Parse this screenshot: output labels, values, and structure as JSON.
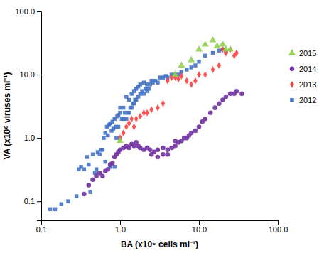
{
  "chart_data": {
    "type": "scatter",
    "x_label": "BA (x10⁵ cells ml⁻¹)",
    "y_label": "VA (x10⁶ viruses ml⁻¹)",
    "log": true,
    "grid": false,
    "legend": "right",
    "xlim": [
      0.1,
      100.0
    ],
    "ylim": [
      0.05,
      100.0
    ],
    "xticks": [
      0.1,
      {
        "value": 1.0,
        "label": "1.0"
      },
      {
        "value": 10.0,
        "label": "10.0"
      },
      {
        "value": 100.0,
        "label": "100.0"
      }
    ],
    "yticks": [
      0.1,
      {
        "value": 1.0,
        "label": "1.0"
      },
      {
        "value": 10.0,
        "label": "10.0"
      },
      {
        "value": 100.0,
        "label": "100.0"
      }
    ],
    "series": [
      {
        "name": "2015",
        "color": "#92D050",
        "marker": "triangle",
        "x": [
          1.0,
          5.0,
          6.0,
          8.0,
          10.0,
          12.0,
          15.0,
          17.0,
          20.0,
          22.0,
          25.0
        ],
        "values": [
          0.9,
          10.0,
          14.0,
          17.0,
          25.0,
          30.0,
          35.0,
          28.0,
          30.0,
          25.0,
          25.0
        ]
      },
      {
        "name": "2014",
        "color": "#7030A0",
        "marker": "circle",
        "x": [
          0.35,
          0.4,
          0.45,
          0.5,
          0.55,
          0.6,
          0.65,
          0.7,
          0.75,
          0.8,
          0.85,
          0.9,
          0.95,
          1.0,
          1.1,
          1.2,
          1.3,
          1.4,
          1.5,
          1.6,
          1.7,
          1.8,
          2.0,
          2.2,
          2.4,
          2.5,
          2.7,
          3.0,
          3.0,
          3.5,
          3.5,
          4.0,
          4.0,
          4.5,
          5.0,
          5.0,
          5.5,
          6.0,
          6.5,
          7.0,
          7.5,
          8.0,
          9.0,
          10.0,
          11.0,
          12.0,
          14.0,
          16.0,
          18.0,
          20.0,
          22.0,
          25.0,
          28.0,
          30.0,
          35.0
        ],
        "values": [
          0.13,
          0.18,
          0.22,
          0.25,
          0.28,
          0.25,
          0.3,
          0.32,
          0.38,
          0.4,
          0.5,
          0.55,
          0.6,
          0.65,
          0.7,
          0.75,
          0.7,
          0.8,
          0.75,
          0.85,
          0.75,
          0.7,
          0.65,
          0.7,
          0.65,
          0.55,
          0.6,
          0.5,
          0.65,
          0.55,
          0.7,
          0.55,
          0.65,
          0.7,
          0.75,
          0.9,
          0.85,
          0.9,
          1.0,
          1.0,
          1.1,
          1.2,
          1.3,
          1.5,
          1.8,
          2.0,
          2.5,
          3.0,
          3.5,
          4.0,
          4.5,
          5.0,
          5.0,
          5.5,
          5.0
        ]
      },
      {
        "name": "2013",
        "color": "#FF4040",
        "marker": "diamond",
        "x": [
          1.0,
          1.1,
          1.2,
          1.3,
          1.4,
          1.5,
          1.6,
          1.8,
          2.0,
          2.2,
          2.5,
          3.0,
          3.5,
          4.0,
          4.5,
          5.0,
          5.5,
          6.0,
          7.0,
          8.0,
          9.0,
          10.0,
          12.0,
          15.0,
          18.0,
          20.0,
          22.0,
          25.0,
          28.0,
          30.0
        ],
        "values": [
          1.0,
          1.2,
          1.5,
          1.7,
          2.0,
          1.5,
          2.0,
          2.2,
          2.5,
          2.5,
          2.8,
          3.0,
          3.5,
          8.0,
          9.0,
          9.0,
          8.5,
          9.5,
          8.0,
          7.0,
          8.0,
          10.0,
          10.0,
          12.0,
          14.0,
          25.0,
          22.0,
          25.0,
          20.0,
          22.0
        ]
      },
      {
        "name": "2012",
        "color": "#4472C4",
        "marker": "square",
        "x": [
          0.13,
          0.15,
          0.18,
          0.22,
          0.28,
          0.3,
          0.32,
          0.35,
          0.38,
          0.4,
          0.42,
          0.45,
          0.48,
          0.5,
          0.52,
          0.55,
          0.58,
          0.6,
          0.62,
          0.65,
          0.65,
          0.68,
          0.7,
          0.72,
          0.75,
          0.75,
          0.78,
          0.8,
          0.82,
          0.85,
          0.85,
          0.88,
          0.9,
          0.92,
          0.95,
          0.95,
          1.0,
          1.0,
          1.0,
          1.05,
          1.1,
          1.1,
          1.15,
          1.2,
          1.2,
          1.25,
          1.3,
          1.3,
          1.35,
          1.4,
          1.4,
          1.45,
          1.5,
          1.5,
          1.55,
          1.6,
          1.6,
          1.7,
          1.7,
          1.8,
          1.8,
          1.9,
          2.0,
          2.0,
          2.1,
          2.2,
          2.2,
          2.3,
          2.4,
          2.5,
          2.6,
          2.8,
          3.0,
          3.2,
          3.5,
          3.8,
          4.0,
          4.5,
          5.0,
          5.5,
          6.0,
          7.0,
          8.0,
          9.0,
          10.0,
          12.0,
          15.0,
          18.0,
          20.0,
          22.0
        ],
        "values": [
          0.075,
          0.075,
          0.09,
          0.1,
          0.12,
          0.32,
          0.35,
          0.32,
          0.5,
          0.38,
          0.14,
          0.55,
          0.28,
          0.32,
          0.6,
          0.55,
          0.65,
          0.65,
          1.0,
          0.42,
          1.2,
          1.5,
          1.1,
          1.6,
          0.35,
          1.7,
          1.3,
          1.8,
          1.4,
          0.35,
          2.0,
          1.5,
          1.0,
          2.2,
          1.5,
          2.3,
          1.0,
          2.5,
          3.0,
          2.0,
          2.0,
          3.0,
          2.5,
          2.0,
          4.5,
          2.5,
          2.5,
          4.0,
          3.0,
          3.0,
          5.0,
          3.5,
          3.5,
          5.5,
          4.0,
          4.0,
          6.0,
          4.5,
          6.5,
          5.0,
          7.0,
          5.5,
          5.0,
          7.5,
          6.0,
          5.5,
          7.0,
          6.0,
          7.0,
          8.0,
          7.5,
          8.0,
          7.5,
          9.0,
          9.0,
          9.5,
          9.0,
          10.0,
          10.0,
          10.0,
          11.0,
          12.0,
          13.0,
          14.0,
          16.0,
          20.0,
          22.0,
          24.0,
          25.0,
          23.0
        ]
      }
    ]
  }
}
